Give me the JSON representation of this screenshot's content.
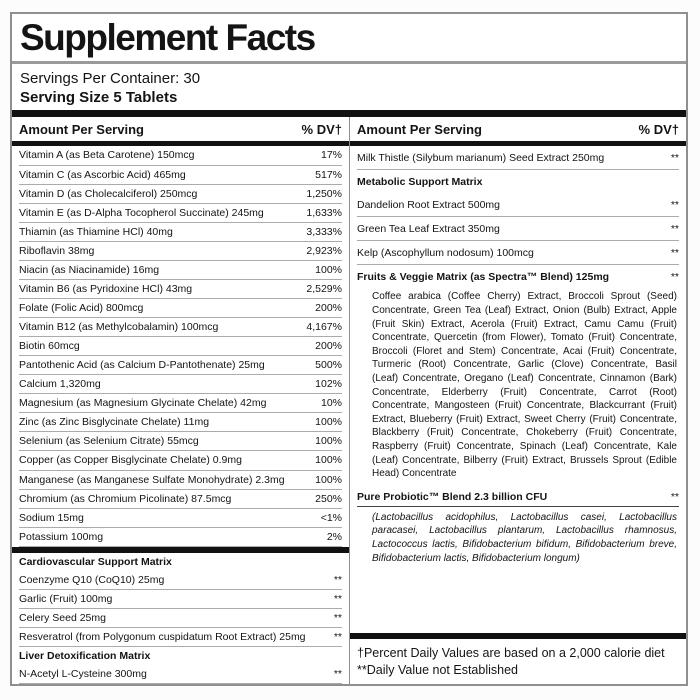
{
  "label": {
    "title": "Supplement Facts",
    "servings_per_container": "Servings Per Container: 30",
    "serving_size": "Serving Size 5 Tablets",
    "column_header": {
      "amount": "Amount Per Serving",
      "dv": "% DV†"
    },
    "footnotes": [
      "†Percent Daily Values are based on a 2,000 calorie diet",
      "**Daily Value not Established"
    ],
    "colors": {
      "text": "#141414",
      "border": "#8f8f8f",
      "bar": "#111111",
      "background": "#ffffff"
    }
  },
  "left_rows": [
    {
      "type": "item",
      "name": "Vitamin A (as Beta Carotene) 150mcg",
      "value": "17%"
    },
    {
      "type": "item",
      "name": "Vitamin C (as Ascorbic Acid) 465mg",
      "value": "517%"
    },
    {
      "type": "item",
      "name": "Vitamin D (as Cholecalciferol) 250mcg",
      "value": "1,250%"
    },
    {
      "type": "item",
      "name": "Vitamin E (as D-Alpha Tocopherol Succinate) 245mg",
      "value": "1,633%"
    },
    {
      "type": "item",
      "name": "Thiamin (as Thiamine HCl) 40mg",
      "value": "3,333%"
    },
    {
      "type": "item",
      "name": "Riboflavin 38mg",
      "value": "2,923%"
    },
    {
      "type": "item",
      "name": "Niacin (as Niacinamide) 16mg",
      "value": "100%"
    },
    {
      "type": "item",
      "name": "Vitamin B6 (as Pyridoxine HCl) 43mg",
      "value": "2,529%"
    },
    {
      "type": "item",
      "name": "Folate (Folic Acid) 800mcg",
      "value": "200%"
    },
    {
      "type": "item",
      "name": "Vitamin B12 (as Methylcobalamin) 100mcg",
      "value": "4,167%"
    },
    {
      "type": "item",
      "name": "Biotin 60mcg",
      "value": "200%"
    },
    {
      "type": "item",
      "name": "Pantothenic Acid (as Calcium D-Pantothenate) 25mg",
      "value": "500%"
    },
    {
      "type": "item",
      "name": "Calcium 1,320mg",
      "value": "102%"
    },
    {
      "type": "item",
      "name": "Magnesium (as Magnesium Glycinate Chelate) 42mg",
      "value": "10%"
    },
    {
      "type": "item",
      "name": "Zinc (as Zinc Bisglycinate Chelate) 11mg",
      "value": "100%"
    },
    {
      "type": "item",
      "name": "Selenium (as Selenium Citrate) 55mcg",
      "value": "100%"
    },
    {
      "type": "item",
      "name": "Copper (as Copper Bisglycinate Chelate) 0.9mg",
      "value": "100%"
    },
    {
      "type": "item",
      "name": "Manganese (as Manganese Sulfate Monohydrate) 2.3mg",
      "value": "100%"
    },
    {
      "type": "item",
      "name": "Chromium (as Chromium Picolinate) 87.5mcg",
      "value": "250%"
    },
    {
      "type": "item",
      "name": "Sodium 15mg",
      "value": "<1%"
    },
    {
      "type": "item",
      "name": "Potassium 100mg",
      "value": "2%"
    },
    {
      "type": "bar"
    },
    {
      "type": "section",
      "name": "Cardiovascular Support Matrix"
    },
    {
      "type": "item",
      "name": "Coenzyme Q10 (CoQ10) 25mg",
      "value": "**"
    },
    {
      "type": "item",
      "name": "Garlic (Fruit) 100mg",
      "value": "**"
    },
    {
      "type": "item",
      "name": "Celery Seed 25mg",
      "value": "**"
    },
    {
      "type": "item",
      "name": "Resveratrol (from Polygonum cuspidatum Root Extract) 25mg",
      "value": "**"
    },
    {
      "type": "section",
      "name": "Liver Detoxification Matrix"
    },
    {
      "type": "item",
      "name": "N-Acetyl L-Cysteine 300mg",
      "value": "**"
    }
  ],
  "right_rows": [
    {
      "type": "item",
      "name": "Milk Thistle (Silybum marianum) Seed Extract 250mg",
      "value": "**"
    },
    {
      "type": "section",
      "name": "Metabolic Support Matrix"
    },
    {
      "type": "item",
      "name": "Dandelion Root Extract 500mg",
      "value": "**"
    },
    {
      "type": "item",
      "name": "Green Tea Leaf Extract 350mg",
      "value": "**"
    },
    {
      "type": "item",
      "name": "Kelp (Ascophyllum nodosum) 100mcg",
      "value": "**"
    },
    {
      "type": "blend",
      "title": "Fruits & Veggie Matrix (as Spectra™ Blend) 125mg",
      "value": "**",
      "italic": false,
      "underline": false,
      "body": "Coffee arabica (Coffee Cherry) Extract, Broccoli Sprout (Seed) Concentrate, Green Tea (Leaf) Extract, Onion (Bulb) Extract, Apple (Fruit Skin) Extract, Acerola (Fruit) Extract, Camu Camu (Fruit) Concentrate, Quercetin (from Flower), Tomato (Fruit) Concentrate, Broccoli (Floret and Stem) Concentrate, Acai (Fruit) Concentrate, Turmeric (Root) Concentrate, Garlic (Clove) Concentrate, Basil (Leaf) Concentrate, Oregano (Leaf) Concentrate, Cinnamon (Bark) Concentrate, Elderberry (Fruit) Concentrate, Carrot (Root) Concentrate, Mangosteen (Fruit) Concentrate, Blackcurrant (Fruit) Extract, Blueberry (Fruit) Extract, Sweet Cherry (Fruit) Concentrate, Blackberry (Fruit) Concentrate, Chokeberry (Fruit) Concentrate, Raspberry (Fruit) Concentrate, Spinach (Leaf) Concentrate, Kale (Leaf) Concentrate, Bilberry (Fruit) Extract, Brussels Sprout (Edible Head) Concentrate"
    },
    {
      "type": "blend",
      "title": "Pure Probiotic™ Blend 2.3 billion CFU",
      "value": "**",
      "italic": true,
      "underline": true,
      "body": "(Lactobacillus acidophilus, Lactobacillus casei, Lactobacillus paracasei, Lactobacillus plantarum, Lactobacillus rhamnosus, Lactococcus lactis, Bifidobacterium bifidum, Bifidobacterium breve, Bifidobacterium lactis, Bifidobacterium longum)"
    }
  ]
}
